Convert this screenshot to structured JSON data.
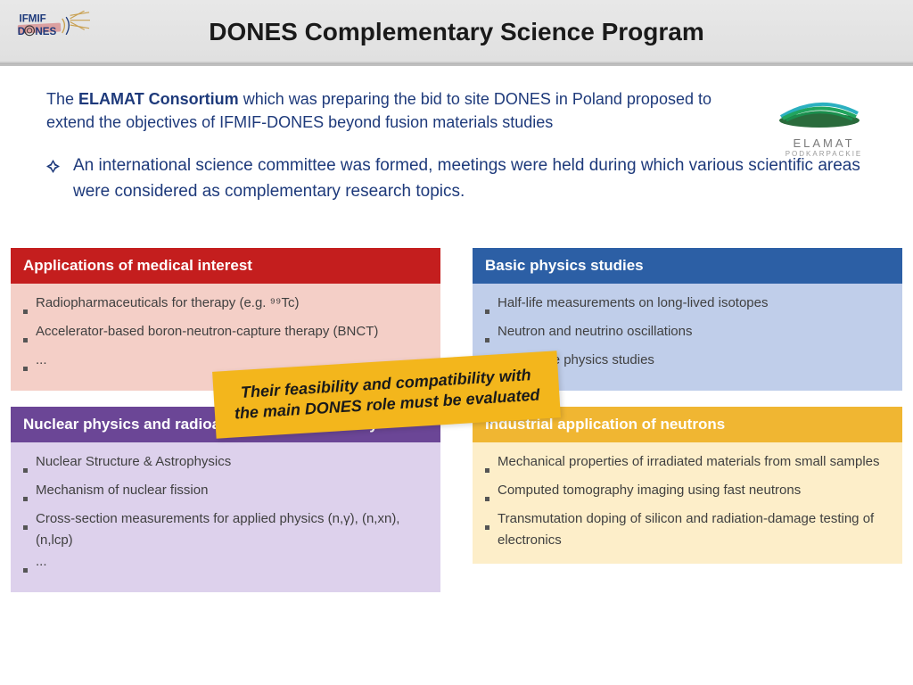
{
  "header": {
    "title": "DONES Complementary Science Program"
  },
  "intro": {
    "prefix": "The ",
    "bold": "ELAMAT Consortium",
    "rest": " which was preparing the bid to site DONES in Poland proposed to extend the objectives of IFMIF-DONES beyond fusion materials studies"
  },
  "bullet": "An international science committee was formed, meetings were held during which various scientific areas were considered as complementary research topics.",
  "panels": {
    "red": {
      "title": "Applications of medical interest",
      "items": [
        "Radiopharmaceuticals for therapy (e.g. ⁹⁹Tc)",
        "Accelerator-based boron-neutron-capture therapy (BNCT)",
        "..."
      ]
    },
    "blue": {
      "title": "Basic physics studies",
      "items": [
        "Half-life measurements on long-lived isotopes",
        "Neutron and neutrino oscillations",
        "Solid state physics studies"
      ]
    },
    "purple": {
      "title": "Nuclear physics and radioactive ion beam facility",
      "items": [
        "Nuclear Structure & Astrophysics",
        "Mechanism of nuclear fission",
        "Cross-section measurements for applied physics (n,γ), (n,xn), (n,lcp)",
        "..."
      ]
    },
    "yellow": {
      "title": "Industrial application of neutrons",
      "items": [
        "Mechanical properties of irradiated materials from small samples",
        "Computed tomography imaging using fast neutrons",
        "Transmutation doping of silicon and radiation-damage testing of electronics"
      ]
    }
  },
  "note_l1": "Their feasibility and compatibility with",
  "note_l2": "the main DONES role must be evaluated",
  "elamat": {
    "name": "ELAMAT",
    "sub": "PODKARPACKIE"
  },
  "colors": {
    "red_head": "#c41e1e",
    "red_body": "#f4cfc7",
    "blue_head": "#2c5fa5",
    "blue_body": "#c0ceea",
    "purple_head": "#6b4696",
    "purple_body": "#ddd1ec",
    "yellow_head": "#f0b632",
    "yellow_body": "#fdeec9",
    "note_bg": "#f3b61c",
    "text_navy": "#1e3a7b"
  }
}
